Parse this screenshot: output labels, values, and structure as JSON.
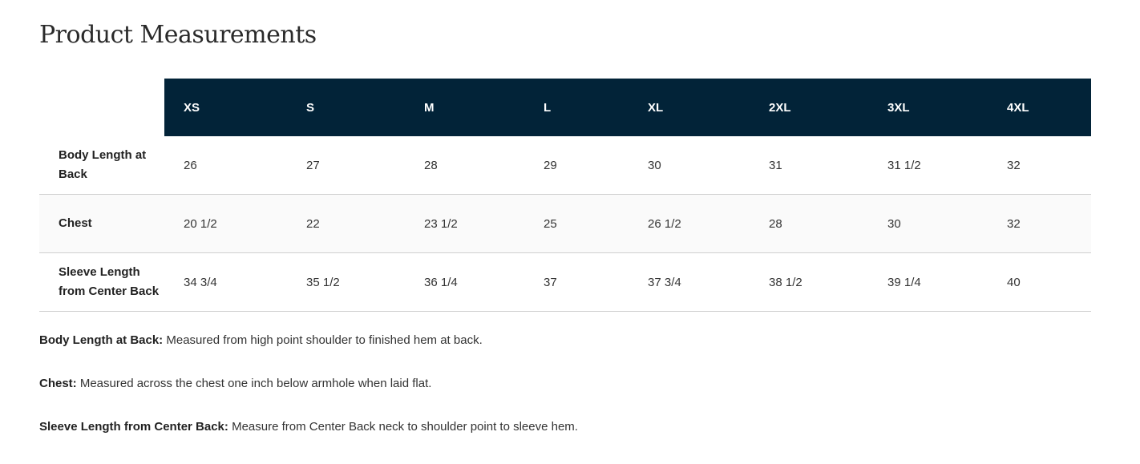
{
  "title": "Product Measurements",
  "sizes": [
    "XS",
    "S",
    "M",
    "L",
    "XL",
    "2XL",
    "3XL",
    "4XL"
  ],
  "rows": [
    {
      "label": "Body Length at Back",
      "values": [
        "26",
        "27",
        "28",
        "29",
        "30",
        "31",
        "31 1/2",
        "32"
      ]
    },
    {
      "label": "Chest",
      "values": [
        "20 1/2",
        "22",
        "23 1/2",
        "25",
        "26 1/2",
        "28",
        "30",
        "32"
      ]
    },
    {
      "label": "Sleeve Length from Center Back",
      "values": [
        "34 3/4",
        "35 1/2",
        "36 1/4",
        "37",
        "37 3/4",
        "38 1/2",
        "39 1/4",
        "40"
      ]
    }
  ],
  "notes": [
    {
      "term": "Body Length at Back:",
      "text": " Measured from high point shoulder to finished hem at back."
    },
    {
      "term": "Chest:",
      "text": " Measured across the chest one inch below armhole when laid flat."
    },
    {
      "term": "Sleeve Length from Center Back:",
      "text": " Measure from Center Back neck to shoulder point to sleeve hem."
    }
  ],
  "colors": {
    "header_bg": "#022338"
  }
}
